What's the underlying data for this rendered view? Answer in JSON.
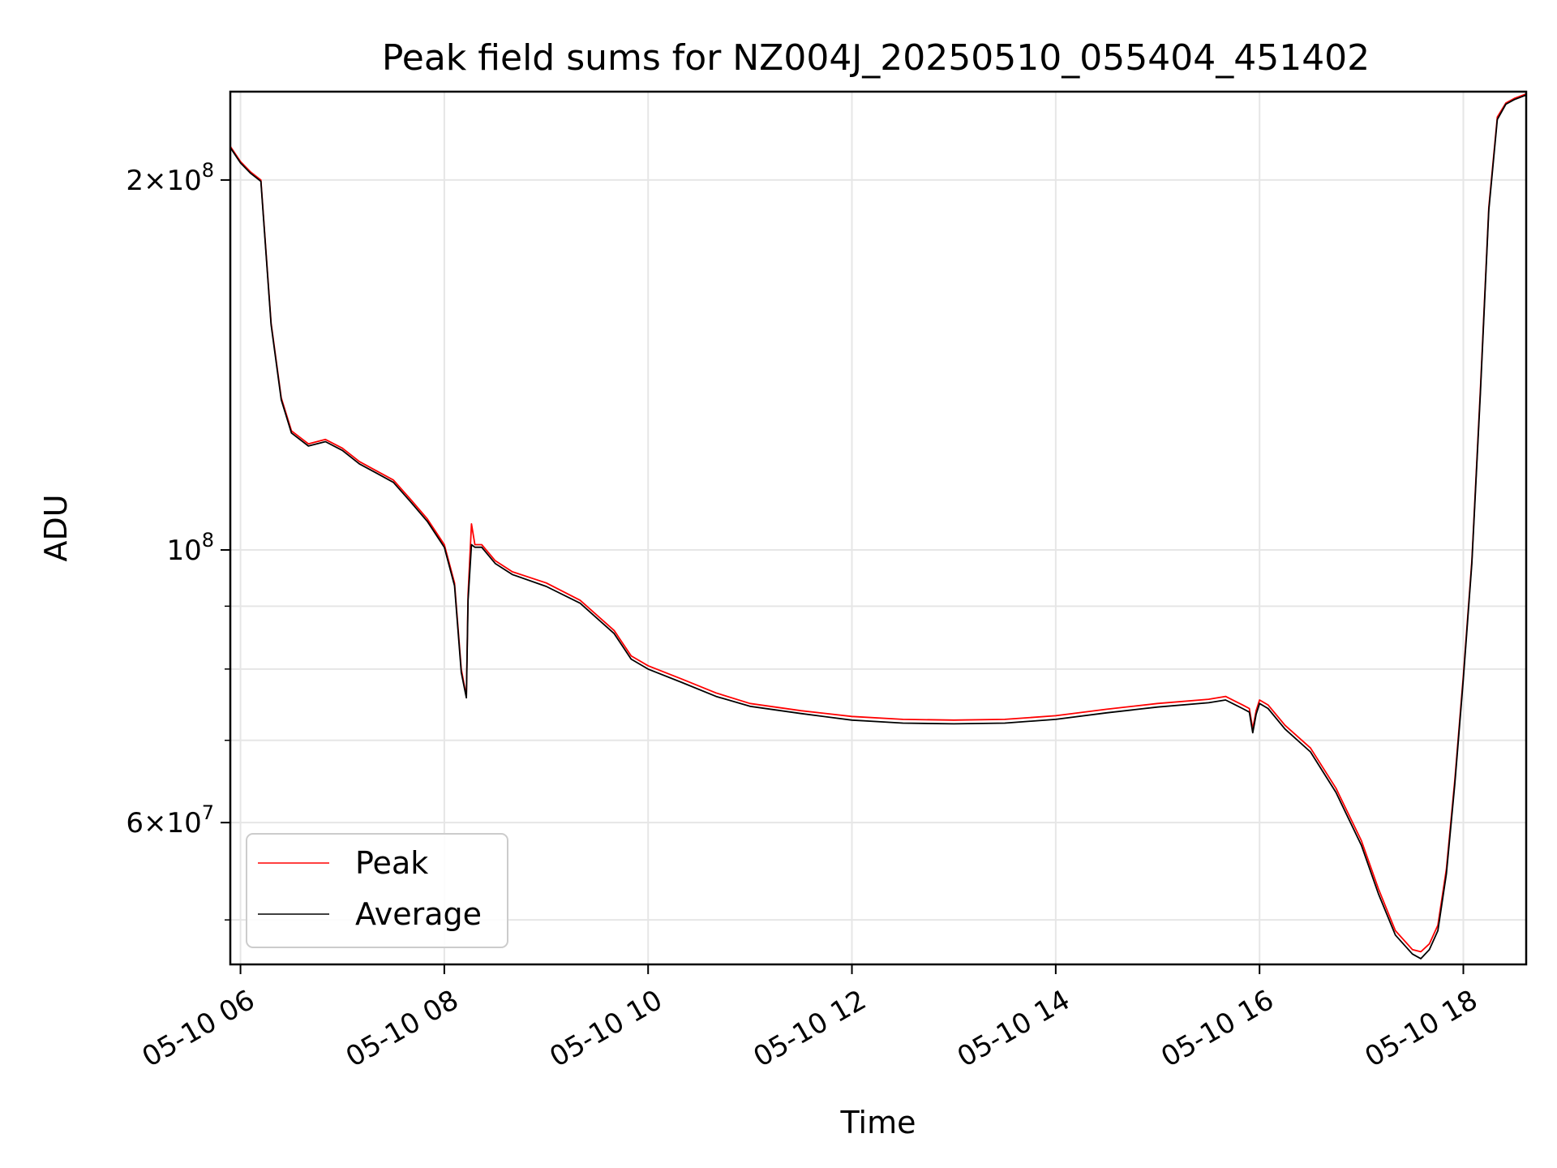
{
  "chart_data": {
    "type": "line",
    "title": "Peak field sums for NZ004J_20250510_055404_451402",
    "xlabel": "Time",
    "ylabel": "ADU",
    "y_scale": "log",
    "grid": true,
    "legend_position": "lower-left",
    "xlim": [
      "2025-05-10 05:54",
      "2025-05-10 18:37"
    ],
    "ylim": [
      46000000,
      236000000
    ],
    "x_ticks": [
      {
        "value": "2025-05-10 06:00",
        "label": "05-10 06"
      },
      {
        "value": "2025-05-10 08:00",
        "label": "05-10 08"
      },
      {
        "value": "2025-05-10 10:00",
        "label": "05-10 10"
      },
      {
        "value": "2025-05-10 12:00",
        "label": "05-10 12"
      },
      {
        "value": "2025-05-10 14:00",
        "label": "05-10 14"
      },
      {
        "value": "2025-05-10 16:00",
        "label": "05-10 16"
      },
      {
        "value": "2025-05-10 18:00",
        "label": "05-10 18"
      }
    ],
    "y_major_ticks": [
      {
        "value": 60000000,
        "base": "6×10",
        "exp": "7"
      },
      {
        "value": 100000000,
        "base": "10",
        "exp": "8"
      },
      {
        "value": 200000000,
        "base": "2×10",
        "exp": "8"
      }
    ],
    "y_minor_ticks": [
      50000000,
      70000000,
      80000000,
      90000000
    ],
    "series": [
      {
        "name": "Peak",
        "color": "#ff0000",
        "x": [
          "2025-05-10 05:54",
          "2025-05-10 06:00",
          "2025-05-10 06:06",
          "2025-05-10 06:12",
          "2025-05-10 06:18",
          "2025-05-10 06:24",
          "2025-05-10 06:30",
          "2025-05-10 06:40",
          "2025-05-10 06:50",
          "2025-05-10 07:00",
          "2025-05-10 07:10",
          "2025-05-10 07:20",
          "2025-05-10 07:30",
          "2025-05-10 07:40",
          "2025-05-10 07:50",
          "2025-05-10 08:00",
          "2025-05-10 08:06",
          "2025-05-10 08:10",
          "2025-05-10 08:13",
          "2025-05-10 08:14",
          "2025-05-10 08:16",
          "2025-05-10 08:18",
          "2025-05-10 08:22",
          "2025-05-10 08:30",
          "2025-05-10 08:40",
          "2025-05-10 09:00",
          "2025-05-10 09:20",
          "2025-05-10 09:40",
          "2025-05-10 09:50",
          "2025-05-10 10:00",
          "2025-05-10 10:20",
          "2025-05-10 10:40",
          "2025-05-10 11:00",
          "2025-05-10 11:30",
          "2025-05-10 12:00",
          "2025-05-10 12:30",
          "2025-05-10 13:00",
          "2025-05-10 13:30",
          "2025-05-10 14:00",
          "2025-05-10 14:30",
          "2025-05-10 15:00",
          "2025-05-10 15:30",
          "2025-05-10 15:40",
          "2025-05-10 15:50",
          "2025-05-10 15:54",
          "2025-05-10 15:56",
          "2025-05-10 15:58",
          "2025-05-10 16:00",
          "2025-05-10 16:05",
          "2025-05-10 16:15",
          "2025-05-10 16:30",
          "2025-05-10 16:45",
          "2025-05-10 17:00",
          "2025-05-10 17:10",
          "2025-05-10 17:20",
          "2025-05-10 17:30",
          "2025-05-10 17:35",
          "2025-05-10 17:40",
          "2025-05-10 17:45",
          "2025-05-10 17:50",
          "2025-05-10 17:55",
          "2025-05-10 18:00",
          "2025-05-10 18:05",
          "2025-05-10 18:10",
          "2025-05-10 18:15",
          "2025-05-10 18:20",
          "2025-05-10 18:25",
          "2025-05-10 18:30",
          "2025-05-10 18:37"
        ],
        "y": [
          213000000,
          207000000,
          203000000,
          200000000,
          153000000,
          133000000,
          125000000,
          122000000,
          123000000,
          121000000,
          118000000,
          116000000,
          114000000,
          110000000,
          106000000,
          101000000,
          94000000,
          80000000,
          76000000,
          92000000,
          105000000,
          101000000,
          101000000,
          98000000,
          96000000,
          94000000,
          91000000,
          86000000,
          82000000,
          80500000,
          78500000,
          76500000,
          75000000,
          74000000,
          73200000,
          72800000,
          72700000,
          72800000,
          73300000,
          74200000,
          75000000,
          75600000,
          76000000,
          74800000,
          74300000,
          71500000,
          74000000,
          75500000,
          74800000,
          72000000,
          69000000,
          64000000,
          58000000,
          53000000,
          49000000,
          47300000,
          47100000,
          47800000,
          49500000,
          55000000,
          65000000,
          79000000,
          98000000,
          135000000,
          190000000,
          225000000,
          231000000,
          233000000,
          235000000
        ]
      },
      {
        "name": "Average",
        "color": "#000000",
        "x": [
          "2025-05-10 05:54",
          "2025-05-10 06:00",
          "2025-05-10 06:06",
          "2025-05-10 06:12",
          "2025-05-10 06:18",
          "2025-05-10 06:24",
          "2025-05-10 06:30",
          "2025-05-10 06:40",
          "2025-05-10 06:50",
          "2025-05-10 07:00",
          "2025-05-10 07:10",
          "2025-05-10 07:20",
          "2025-05-10 07:30",
          "2025-05-10 07:40",
          "2025-05-10 07:50",
          "2025-05-10 08:00",
          "2025-05-10 08:06",
          "2025-05-10 08:10",
          "2025-05-10 08:13",
          "2025-05-10 08:14",
          "2025-05-10 08:16",
          "2025-05-10 08:18",
          "2025-05-10 08:22",
          "2025-05-10 08:30",
          "2025-05-10 08:40",
          "2025-05-10 09:00",
          "2025-05-10 09:20",
          "2025-05-10 09:40",
          "2025-05-10 09:50",
          "2025-05-10 10:00",
          "2025-05-10 10:20",
          "2025-05-10 10:40",
          "2025-05-10 11:00",
          "2025-05-10 11:30",
          "2025-05-10 12:00",
          "2025-05-10 12:30",
          "2025-05-10 13:00",
          "2025-05-10 13:30",
          "2025-05-10 14:00",
          "2025-05-10 14:30",
          "2025-05-10 15:00",
          "2025-05-10 15:30",
          "2025-05-10 15:40",
          "2025-05-10 15:50",
          "2025-05-10 15:54",
          "2025-05-10 15:56",
          "2025-05-10 15:58",
          "2025-05-10 16:00",
          "2025-05-10 16:05",
          "2025-05-10 16:15",
          "2025-05-10 16:30",
          "2025-05-10 16:45",
          "2025-05-10 17:00",
          "2025-05-10 17:10",
          "2025-05-10 17:20",
          "2025-05-10 17:30",
          "2025-05-10 17:35",
          "2025-05-10 17:40",
          "2025-05-10 17:45",
          "2025-05-10 17:50",
          "2025-05-10 17:55",
          "2025-05-10 18:00",
          "2025-05-10 18:05",
          "2025-05-10 18:10",
          "2025-05-10 18:15",
          "2025-05-10 18:20",
          "2025-05-10 18:25",
          "2025-05-10 18:30",
          "2025-05-10 18:37"
        ],
        "y": [
          212500000,
          206500000,
          202500000,
          199500000,
          152500000,
          132500000,
          124500000,
          121500000,
          122500000,
          120500000,
          117500000,
          115500000,
          113500000,
          109500000,
          105500000,
          100500000,
          93500000,
          79500000,
          75800000,
          91000000,
          101000000,
          100500000,
          100500000,
          97500000,
          95500000,
          93400000,
          90500000,
          85500000,
          81500000,
          80000000,
          78000000,
          76000000,
          74600000,
          73600000,
          72700000,
          72300000,
          72200000,
          72300000,
          72800000,
          73700000,
          74500000,
          75100000,
          75500000,
          74300000,
          73800000,
          71000000,
          73500000,
          75000000,
          74300000,
          71500000,
          68500000,
          63500000,
          57500000,
          52500000,
          48600000,
          46900000,
          46500000,
          47300000,
          49000000,
          54500000,
          64500000,
          78500000,
          97500000,
          134000000,
          189000000,
          224000000,
          230500000,
          232500000,
          234500000
        ]
      }
    ]
  }
}
